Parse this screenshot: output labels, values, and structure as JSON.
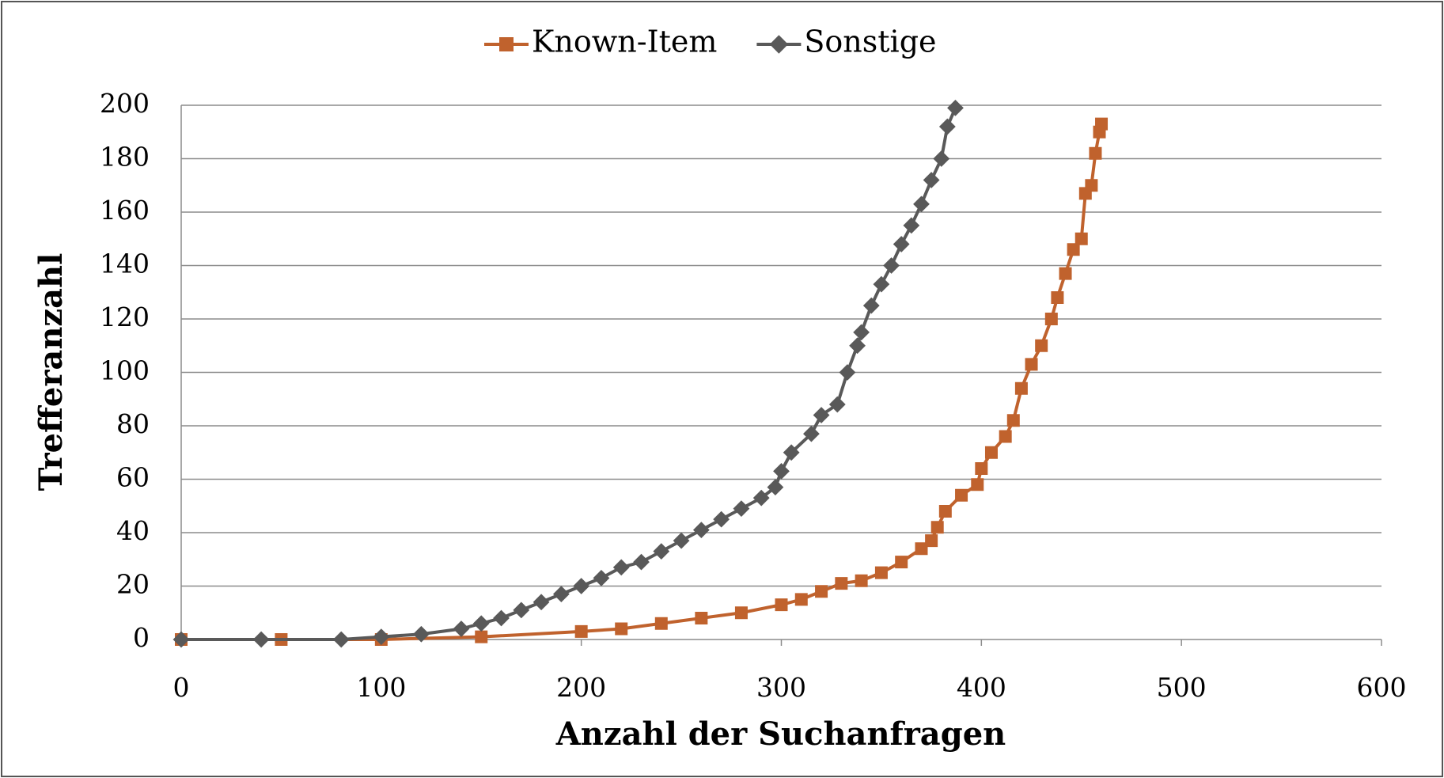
{
  "chart_data": {
    "type": "line",
    "xlabel": "Anzahl der Suchanfragen",
    "ylabel": "Trefferanzahl",
    "xlim": [
      0,
      600
    ],
    "xticks": [
      0,
      100,
      200,
      300,
      400,
      500,
      600
    ],
    "ylim": [
      0,
      200
    ],
    "yticks": [
      0,
      20,
      40,
      60,
      80,
      100,
      120,
      140,
      160,
      180,
      200
    ],
    "grid": true,
    "legend": "top",
    "series": [
      {
        "name": "Known-Item",
        "color": "#c0622d",
        "marker": "square",
        "x": [
          0,
          50,
          100,
          150,
          200,
          220,
          240,
          260,
          280,
          300,
          310,
          320,
          330,
          340,
          350,
          360,
          370,
          375,
          378,
          382,
          390,
          398,
          400,
          405,
          412,
          416,
          420,
          425,
          430,
          435,
          438,
          442,
          446,
          450,
          452,
          455,
          457,
          459,
          460
        ],
        "values": [
          0,
          0,
          0,
          1,
          3,
          4,
          6,
          8,
          10,
          13,
          15,
          18,
          21,
          22,
          25,
          29,
          34,
          37,
          42,
          48,
          54,
          58,
          64,
          70,
          76,
          82,
          94,
          103,
          110,
          120,
          128,
          137,
          146,
          150,
          167,
          170,
          182,
          190,
          193
        ]
      },
      {
        "name": "Sonstige",
        "color": "#595959",
        "marker": "diamond",
        "x": [
          0,
          40,
          80,
          100,
          120,
          140,
          150,
          160,
          170,
          180,
          190,
          200,
          210,
          220,
          230,
          240,
          250,
          260,
          270,
          280,
          290,
          297,
          300,
          305,
          315,
          320,
          328,
          333,
          338,
          340,
          345,
          350,
          355,
          360,
          365,
          370,
          375,
          380,
          383,
          387
        ],
        "values": [
          0,
          0,
          0,
          1,
          2,
          4,
          6,
          8,
          11,
          14,
          17,
          20,
          23,
          27,
          29,
          33,
          37,
          41,
          45,
          49,
          53,
          57,
          63,
          70,
          77,
          84,
          88,
          100,
          110,
          115,
          125,
          133,
          140,
          148,
          155,
          163,
          172,
          180,
          192,
          199
        ]
      }
    ]
  }
}
